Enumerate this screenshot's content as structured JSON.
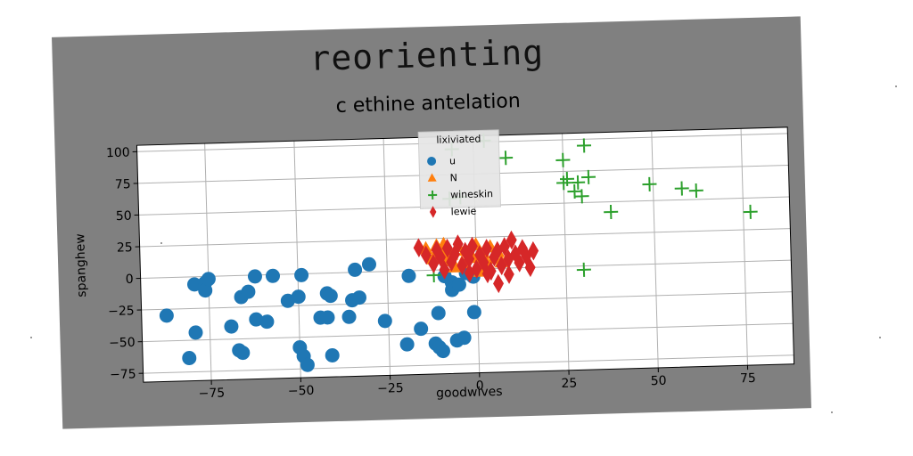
{
  "header": {
    "title": "reorienting",
    "subtitle": "c ethine antelation"
  },
  "chart_data": {
    "type": "scatter",
    "xlabel": "goodwives",
    "ylabel": "spanghew",
    "xlim": [
      -94,
      88
    ],
    "ylim": [
      -82,
      105
    ],
    "xticks": [
      -75,
      -50,
      -25,
      0,
      25,
      50,
      75
    ],
    "yticks": [
      -75,
      -50,
      -25,
      0,
      25,
      50,
      75,
      100
    ],
    "xtick_labels": [
      "−75",
      "−50",
      "−25",
      "0",
      "25",
      "50",
      "75"
    ],
    "ytick_labels": [
      "−75",
      "−50",
      "−25",
      "0",
      "25",
      "50",
      "75",
      "100"
    ],
    "grid": true,
    "legend": {
      "title": "lixiviated",
      "placement": "top-center"
    },
    "series": [
      {
        "name": "u",
        "marker": "circle",
        "color": "#1f77b4",
        "points": [
          [
            -87,
            -30
          ],
          [
            -81,
            -64
          ],
          [
            -79,
            -44
          ],
          [
            -79,
            -6
          ],
          [
            -76,
            -5
          ],
          [
            -76,
            -11
          ],
          [
            -75,
            -2
          ],
          [
            -69,
            -40
          ],
          [
            -67,
            -59
          ],
          [
            -66,
            -17
          ],
          [
            -66,
            -61
          ],
          [
            -64,
            -13
          ],
          [
            -62,
            -35
          ],
          [
            -62,
            -1
          ],
          [
            -59,
            -37
          ],
          [
            -57,
            -1
          ],
          [
            -53,
            -21
          ],
          [
            -50,
            -18
          ],
          [
            -50,
            -58
          ],
          [
            -49,
            -1
          ],
          [
            -49,
            -65
          ],
          [
            -48,
            -72
          ],
          [
            -44,
            -35
          ],
          [
            -42,
            -35
          ],
          [
            -42,
            -16
          ],
          [
            -41,
            -18
          ],
          [
            -41,
            -65
          ],
          [
            -36,
            -35
          ],
          [
            -35,
            -22
          ],
          [
            -33,
            -20
          ],
          [
            -34,
            2
          ],
          [
            -30,
            6
          ],
          [
            -26,
            -39
          ],
          [
            -20,
            -58
          ],
          [
            -19,
            -4
          ],
          [
            -16,
            -46
          ],
          [
            -12,
            -58
          ],
          [
            -11,
            -34
          ],
          [
            -11,
            -61
          ],
          [
            -10,
            -64
          ],
          [
            -9,
            -5
          ],
          [
            -7,
            -10
          ],
          [
            -7,
            -16
          ],
          [
            -6,
            -56
          ],
          [
            -5,
            -12
          ],
          [
            -4,
            -54
          ],
          [
            -3,
            -3
          ],
          [
            -1,
            -6
          ],
          [
            -1,
            -34
          ]
        ]
      },
      {
        "name": "N",
        "marker": "triangle",
        "color": "#ff7f0e",
        "points": [
          [
            -14,
            17
          ],
          [
            -12,
            9
          ],
          [
            -11,
            19
          ],
          [
            -10,
            14
          ],
          [
            -9,
            20
          ],
          [
            -8,
            7
          ],
          [
            -7,
            12
          ],
          [
            -5,
            18
          ],
          [
            -4,
            5
          ],
          [
            -3,
            15
          ],
          [
            -1,
            9
          ],
          [
            0,
            19
          ],
          [
            2,
            12
          ],
          [
            3,
            4
          ],
          [
            4,
            17
          ],
          [
            5,
            8
          ],
          [
            6,
            13
          ],
          [
            -6,
            2
          ],
          [
            1,
            -2
          ],
          [
            7,
            5
          ]
        ]
      },
      {
        "name": "wineskin",
        "marker": "plus",
        "color": "#2ca02c",
        "points": [
          [
            -12,
            -4
          ],
          [
            -6,
            95
          ],
          [
            3,
            101
          ],
          [
            -4,
            57
          ],
          [
            -7,
            56
          ],
          [
            9,
            87
          ],
          [
            25,
            84
          ],
          [
            25,
            66
          ],
          [
            26,
            69
          ],
          [
            28,
            59
          ],
          [
            29,
            66
          ],
          [
            30,
            55
          ],
          [
            30,
            -3
          ],
          [
            31,
            95
          ],
          [
            32,
            70
          ],
          [
            38,
            42
          ],
          [
            49,
            63
          ],
          [
            58,
            59
          ],
          [
            62,
            57
          ],
          [
            77,
            39
          ]
        ]
      },
      {
        "name": "lewie",
        "marker": "diamond",
        "color": "#d62728",
        "points": [
          [
            -16,
            18
          ],
          [
            -14,
            12
          ],
          [
            -12,
            5
          ],
          [
            -11,
            16
          ],
          [
            -10,
            10
          ],
          [
            -9,
            0
          ],
          [
            -8,
            17
          ],
          [
            -7,
            6
          ],
          [
            -6,
            12
          ],
          [
            -5,
            20
          ],
          [
            -4,
            3
          ],
          [
            -3,
            14
          ],
          [
            -2,
            8
          ],
          [
            -1,
            18
          ],
          [
            0,
            0
          ],
          [
            1,
            11
          ],
          [
            2,
            5
          ],
          [
            3,
            16
          ],
          [
            4,
            -2
          ],
          [
            5,
            9
          ],
          [
            6,
            14
          ],
          [
            7,
            2
          ],
          [
            8,
            17
          ],
          [
            9,
            7
          ],
          [
            10,
            22
          ],
          [
            11,
            11
          ],
          [
            12,
            4
          ],
          [
            13,
            15
          ],
          [
            14,
            9
          ],
          [
            15,
            0
          ],
          [
            16,
            13
          ],
          [
            6,
            -12
          ],
          [
            3,
            -4
          ],
          [
            -2,
            -3
          ],
          [
            9,
            -5
          ]
        ]
      }
    ]
  }
}
